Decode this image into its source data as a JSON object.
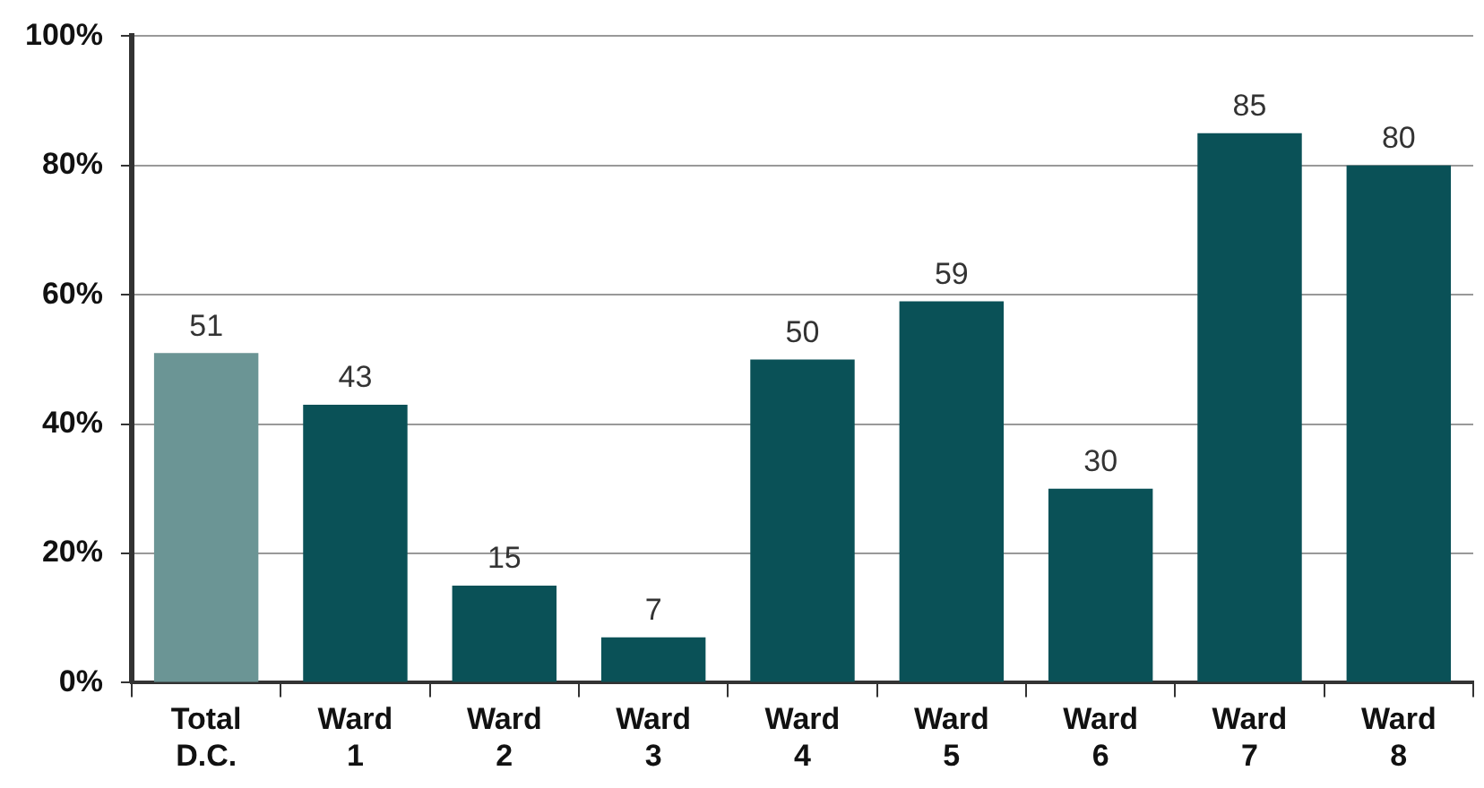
{
  "chart_data": {
    "type": "bar",
    "categories": [
      "Total D.C.",
      "Ward 1",
      "Ward 2",
      "Ward 3",
      "Ward 4",
      "Ward 5",
      "Ward 6",
      "Ward 7",
      "Ward 8"
    ],
    "values": [
      51,
      43,
      15,
      7,
      50,
      59,
      30,
      85,
      80
    ],
    "colors": [
      "#6b9595",
      "#0a5157",
      "#0a5157",
      "#0a5157",
      "#0a5157",
      "#0a5157",
      "#0a5157",
      "#0a5157",
      "#0a5157"
    ],
    "ylim": [
      0,
      100
    ],
    "yticks": [
      {
        "value": 0,
        "label": "0%"
      },
      {
        "value": 20,
        "label": "20%"
      },
      {
        "value": 40,
        "label": "40%"
      },
      {
        "value": 60,
        "label": "60%"
      },
      {
        "value": 80,
        "label": "80%"
      },
      {
        "value": 100,
        "label": "100%"
      }
    ],
    "grid": "y",
    "legend": false,
    "data_labels": true
  }
}
